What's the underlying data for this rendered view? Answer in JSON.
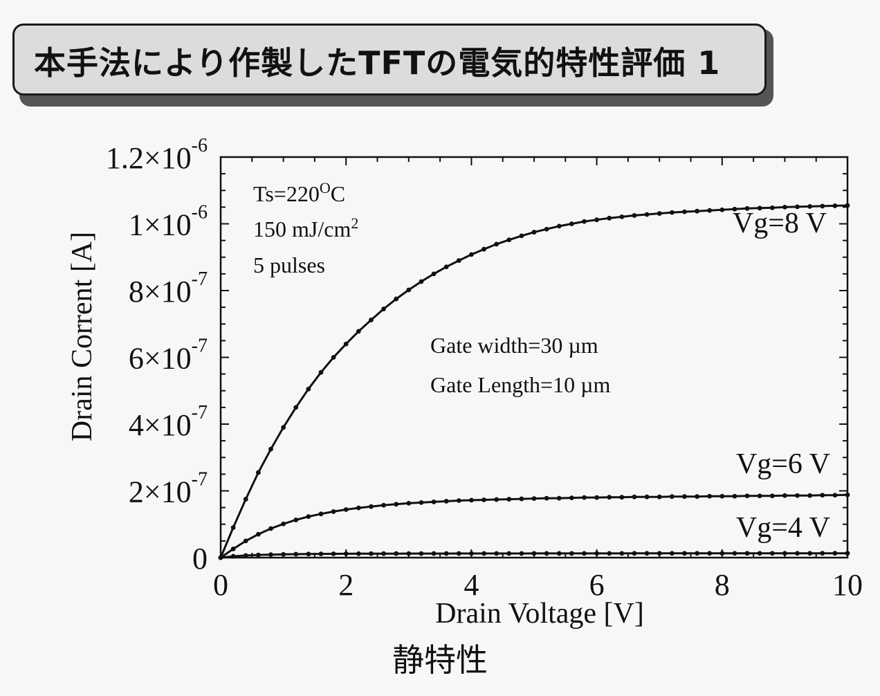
{
  "title": "本手法により作製したTFTの電気的特性評価 1",
  "caption": "静特性",
  "chart_data": {
    "type": "line",
    "xlabel": "Drain Voltage [V]",
    "ylabel": "Drain Corrent [A]",
    "xlim": [
      0,
      10
    ],
    "ylim": [
      0,
      1.2e-06
    ],
    "x_ticks": [
      0,
      2,
      4,
      6,
      8,
      10
    ],
    "x_tick_labels": [
      "0",
      "2",
      "4",
      "6",
      "8",
      "10"
    ],
    "y_ticks": [
      0,
      2e-07,
      4e-07,
      6e-07,
      8e-07,
      1e-06,
      1.2e-06
    ],
    "y_tick_labels": [
      {
        "mant": "0",
        "exp": ""
      },
      {
        "mant": "2×10",
        "exp": "-7"
      },
      {
        "mant": "4×10",
        "exp": "-7"
      },
      {
        "mant": "6×10",
        "exp": "-7"
      },
      {
        "mant": "8×10",
        "exp": "-7"
      },
      {
        "mant": "1×10",
        "exp": "-6"
      },
      {
        "mant": "1.2×10",
        "exp": "-6"
      }
    ],
    "grid": false,
    "annotations": {
      "conditions": [
        "Ts=220",
        "150 mJ/cm",
        "5 pulses"
      ],
      "conditions_sup": [
        "O",
        "2"
      ],
      "conditions_tail": "C",
      "gate": [
        "Gate width=30 µm",
        "Gate Length=10 µm"
      ]
    },
    "series": [
      {
        "label": "Vg=8 V",
        "x": [
          0,
          0.2,
          0.4,
          0.6,
          0.8,
          1.0,
          1.2,
          1.4,
          1.6,
          1.8,
          2.0,
          2.2,
          2.4,
          2.6,
          2.8,
          3.0,
          3.2,
          3.4,
          3.6,
          3.8,
          4.0,
          4.2,
          4.4,
          4.6,
          4.8,
          5.0,
          5.2,
          5.4,
          5.6,
          5.8,
          6.0,
          6.2,
          6.4,
          6.6,
          6.8,
          7.0,
          7.2,
          7.4,
          7.6,
          7.8,
          8.0,
          8.2,
          8.4,
          8.6,
          8.8,
          9.0,
          9.2,
          9.4,
          9.6,
          9.8,
          10.0
        ],
        "y": [
          0,
          9e-08,
          1.75e-07,
          2.55e-07,
          3.25e-07,
          3.9e-07,
          4.5e-07,
          5.05e-07,
          5.55e-07,
          6e-07,
          6.4e-07,
          6.78e-07,
          7.12e-07,
          7.45e-07,
          7.75e-07,
          8.02e-07,
          8.27e-07,
          8.5e-07,
          8.71e-07,
          8.9e-07,
          9.08e-07,
          9.24e-07,
          9.39e-07,
          9.52e-07,
          9.64e-07,
          9.75e-07,
          9.84e-07,
          9.93e-07,
          1e-06,
          1.007e-06,
          1.012e-06,
          1.017e-06,
          1.021e-06,
          1.025e-06,
          1.028e-06,
          1.031e-06,
          1.034e-06,
          1.036e-06,
          1.038e-06,
          1.04e-06,
          1.042e-06,
          1.044e-06,
          1.046e-06,
          1.047e-06,
          1.048e-06,
          1.05e-06,
          1.051e-06,
          1.052e-06,
          1.053e-06,
          1.054e-06,
          1.055e-06
        ]
      },
      {
        "label": "Vg=6 V",
        "x": [
          0,
          0.2,
          0.4,
          0.6,
          0.8,
          1.0,
          1.2,
          1.4,
          1.6,
          1.8,
          2.0,
          2.2,
          2.4,
          2.6,
          2.8,
          3.0,
          3.2,
          3.4,
          3.6,
          3.8,
          4.0,
          4.2,
          4.4,
          4.6,
          4.8,
          5.0,
          5.2,
          5.4,
          5.6,
          5.8,
          6.0,
          6.2,
          6.4,
          6.6,
          6.8,
          7.0,
          7.2,
          7.4,
          7.6,
          7.8,
          8.0,
          8.2,
          8.4,
          8.6,
          8.8,
          9.0,
          9.2,
          9.4,
          9.6,
          9.8,
          10.0
        ],
        "y": [
          0,
          2.6e-08,
          5e-08,
          7e-08,
          8.7e-08,
          1.01e-07,
          1.13e-07,
          1.23e-07,
          1.31e-07,
          1.38e-07,
          1.44e-07,
          1.49e-07,
          1.53e-07,
          1.57e-07,
          1.6e-07,
          1.63e-07,
          1.65e-07,
          1.67e-07,
          1.69e-07,
          1.71e-07,
          1.72e-07,
          1.73e-07,
          1.74e-07,
          1.75e-07,
          1.76e-07,
          1.77e-07,
          1.78e-07,
          1.78e-07,
          1.79e-07,
          1.8e-07,
          1.8e-07,
          1.81e-07,
          1.81e-07,
          1.82e-07,
          1.82e-07,
          1.82e-07,
          1.83e-07,
          1.83e-07,
          1.83e-07,
          1.84e-07,
          1.84e-07,
          1.84e-07,
          1.85e-07,
          1.85e-07,
          1.85e-07,
          1.86e-07,
          1.86e-07,
          1.86e-07,
          1.87e-07,
          1.87e-07,
          1.88e-07
        ]
      },
      {
        "label": "Vg=4 V",
        "x": [
          0,
          0.2,
          0.4,
          0.6,
          0.8,
          1.0,
          1.2,
          1.4,
          1.6,
          1.8,
          2.0,
          2.2,
          2.4,
          2.6,
          2.8,
          3.0,
          3.2,
          3.4,
          3.6,
          3.8,
          4.0,
          4.2,
          4.4,
          4.6,
          4.8,
          5.0,
          5.2,
          5.4,
          5.6,
          5.8,
          6.0,
          6.2,
          6.4,
          6.6,
          6.8,
          7.0,
          7.2,
          7.4,
          7.6,
          7.8,
          8.0,
          8.2,
          8.4,
          8.6,
          8.8,
          9.0,
          9.2,
          9.4,
          9.6,
          9.8,
          10.0
        ],
        "y": [
          0,
          4e-09,
          6.5e-09,
          8e-09,
          9e-09,
          9.8e-09,
          1.04e-08,
          1.08e-08,
          1.11e-08,
          1.14e-08,
          1.16e-08,
          1.18e-08,
          1.19e-08,
          1.2e-08,
          1.21e-08,
          1.22e-08,
          1.22e-08,
          1.23e-08,
          1.23e-08,
          1.24e-08,
          1.24e-08,
          1.24e-08,
          1.25e-08,
          1.25e-08,
          1.25e-08,
          1.26e-08,
          1.26e-08,
          1.26e-08,
          1.26e-08,
          1.27e-08,
          1.27e-08,
          1.27e-08,
          1.27e-08,
          1.28e-08,
          1.28e-08,
          1.28e-08,
          1.28e-08,
          1.28e-08,
          1.29e-08,
          1.29e-08,
          1.29e-08,
          1.29e-08,
          1.29e-08,
          1.3e-08,
          1.3e-08,
          1.3e-08,
          1.3e-08,
          1.3e-08,
          1.31e-08,
          1.31e-08,
          1.31e-08
        ]
      }
    ]
  }
}
